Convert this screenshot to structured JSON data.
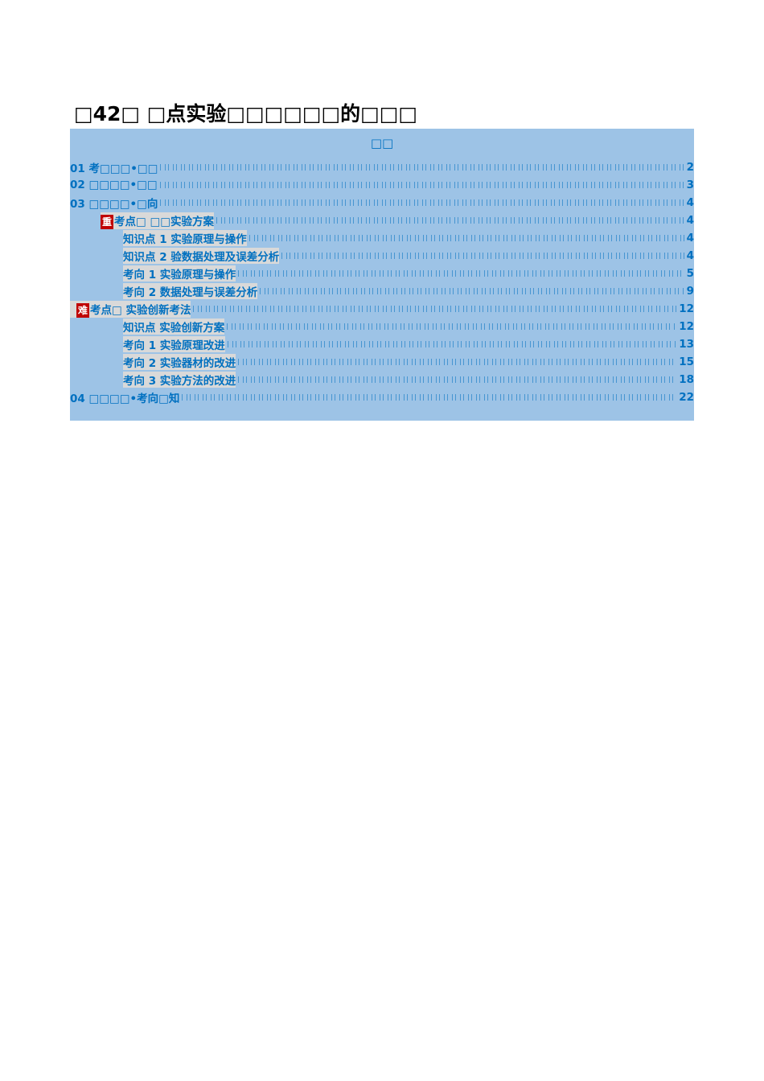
{
  "title": "□42□ □点实验□□□□□□的□□□",
  "toc": {
    "heading": "□□",
    "entries": [
      {
        "level": 0,
        "text": "01 考□□□•□□",
        "page": "2"
      },
      {
        "level": 0,
        "text": "02 □□□□•□□",
        "page": "3"
      },
      {
        "level": 0,
        "text": "03 □□□□•□向",
        "page": "4"
      },
      {
        "level": 1,
        "badge": "重",
        "text": "考点□ □□实验方案",
        "page": "4"
      },
      {
        "level": 2,
        "text": "知识点 1 实验原理与操作",
        "page": "4"
      },
      {
        "level": 2,
        "text": "知识点 2 验数据处理及误差分析",
        "page": "4"
      },
      {
        "level": 2,
        "text": "考向 1 实验原理与操作",
        "page": "5"
      },
      {
        "level": 2,
        "text": "考向 2 数据处理与误差分析",
        "page": "9"
      },
      {
        "level": 3,
        "badge": "难",
        "text": "考点□ 实验创新考法",
        "page": "12"
      },
      {
        "level": 2,
        "text": "知识点 实验创新方案",
        "page": "12"
      },
      {
        "level": 2,
        "text": "考向 1 实验原理改进",
        "page": "13"
      },
      {
        "level": 2,
        "text": "考向 2 实验器材的改进",
        "page": "15"
      },
      {
        "level": 2,
        "text": "考向 3 实验方法的改进",
        "page": "18"
      },
      {
        "level": 0,
        "text": "04 □□□□•考向□知",
        "page": "22"
      }
    ]
  }
}
